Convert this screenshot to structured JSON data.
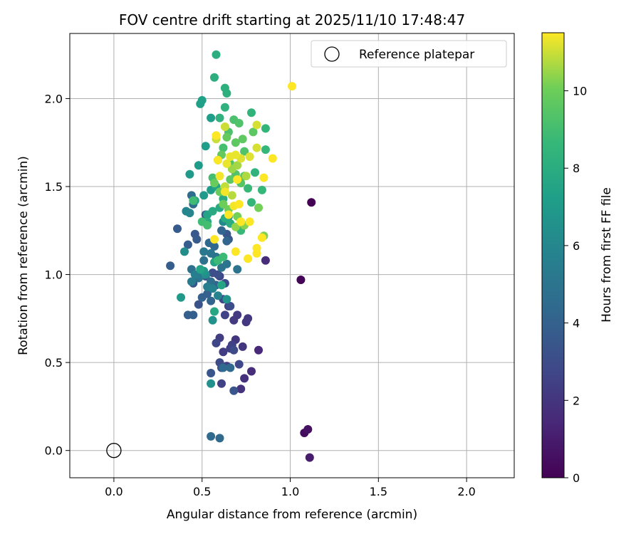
{
  "chart_data": {
    "type": "scatter",
    "title": "FOV centre drift starting at 2025/11/10 17:48:47",
    "xlabel": "Angular distance from reference (arcmin)",
    "ylabel": "Rotation from reference (arcmin)",
    "xlim": [
      -0.25,
      2.27
    ],
    "ylim": [
      -0.155,
      2.37
    ],
    "xticks": [
      0.0,
      0.5,
      1.0,
      1.5,
      2.0
    ],
    "xtick_labels": [
      "0.0",
      "0.5",
      "1.0",
      "1.5",
      "2.0"
    ],
    "yticks": [
      0.0,
      0.5,
      1.0,
      1.5,
      2.0
    ],
    "ytick_labels": [
      "0.0",
      "0.5",
      "1.0",
      "1.5",
      "2.0"
    ],
    "grid": true,
    "legend": {
      "position": "top-right",
      "label": "Reference platepar"
    },
    "reference_point": {
      "x": 0.0,
      "y": 0.0
    },
    "colorbar": {
      "label": "Hours from first FF file",
      "range": [
        0,
        11.5
      ],
      "ticks": [
        0,
        2,
        4,
        6,
        8,
        10
      ],
      "tick_labels": [
        "0",
        "2",
        "4",
        "6",
        "8",
        "10"
      ],
      "colormap": "viridis"
    },
    "points": [
      {
        "x": 1.12,
        "y": 1.41,
        "t": 0.0
      },
      {
        "x": 1.06,
        "y": 0.97,
        "t": 0.1
      },
      {
        "x": 1.08,
        "y": 0.1,
        "t": 0.4
      },
      {
        "x": 1.1,
        "y": 0.12,
        "t": 0.6
      },
      {
        "x": 1.11,
        "y": -0.04,
        "t": 1.0
      },
      {
        "x": 0.82,
        "y": 0.57,
        "t": 1.5
      },
      {
        "x": 0.86,
        "y": 1.08,
        "t": 1.6
      },
      {
        "x": 0.78,
        "y": 0.45,
        "t": 1.7
      },
      {
        "x": 0.74,
        "y": 0.41,
        "t": 1.8
      },
      {
        "x": 0.72,
        "y": 0.35,
        "t": 1.9
      },
      {
        "x": 0.69,
        "y": 0.63,
        "t": 2.0
      },
      {
        "x": 0.73,
        "y": 0.59,
        "t": 2.0
      },
      {
        "x": 0.75,
        "y": 0.73,
        "t": 2.1
      },
      {
        "x": 0.76,
        "y": 0.75,
        "t": 2.1
      },
      {
        "x": 0.68,
        "y": 0.74,
        "t": 2.2
      },
      {
        "x": 0.7,
        "y": 0.77,
        "t": 2.2
      },
      {
        "x": 0.6,
        "y": 0.64,
        "t": 2.3
      },
      {
        "x": 0.62,
        "y": 0.56,
        "t": 2.3
      },
      {
        "x": 0.66,
        "y": 0.58,
        "t": 2.4
      },
      {
        "x": 0.64,
        "y": 0.48,
        "t": 2.4
      },
      {
        "x": 0.61,
        "y": 0.38,
        "t": 2.5
      },
      {
        "x": 0.67,
        "y": 0.6,
        "t": 2.5
      },
      {
        "x": 0.65,
        "y": 0.82,
        "t": 2.6
      },
      {
        "x": 0.63,
        "y": 0.77,
        "t": 2.6
      },
      {
        "x": 0.58,
        "y": 0.61,
        "t": 2.7
      },
      {
        "x": 0.6,
        "y": 0.99,
        "t": 2.7
      },
      {
        "x": 0.62,
        "y": 0.86,
        "t": 2.8
      },
      {
        "x": 0.71,
        "y": 0.49,
        "t": 2.8
      },
      {
        "x": 0.68,
        "y": 0.57,
        "t": 2.9
      },
      {
        "x": 0.6,
        "y": 0.5,
        "t": 2.9
      },
      {
        "x": 0.63,
        "y": 0.95,
        "t": 3.0
      },
      {
        "x": 0.66,
        "y": 0.82,
        "t": 3.0
      },
      {
        "x": 0.56,
        "y": 1.01,
        "t": 3.1
      },
      {
        "x": 0.59,
        "y": 1.0,
        "t": 3.1
      },
      {
        "x": 0.61,
        "y": 0.47,
        "t": 3.2
      },
      {
        "x": 0.52,
        "y": 0.99,
        "t": 3.2
      },
      {
        "x": 0.48,
        "y": 0.83,
        "t": 3.3
      },
      {
        "x": 0.45,
        "y": 0.95,
        "t": 3.3
      },
      {
        "x": 0.55,
        "y": 0.44,
        "t": 3.4
      },
      {
        "x": 0.68,
        "y": 0.34,
        "t": 3.4
      },
      {
        "x": 0.65,
        "y": 1.2,
        "t": 3.5
      },
      {
        "x": 0.64,
        "y": 1.23,
        "t": 3.5
      },
      {
        "x": 0.46,
        "y": 1.23,
        "t": 3.6
      },
      {
        "x": 0.52,
        "y": 1.34,
        "t": 3.6
      },
      {
        "x": 0.47,
        "y": 1.2,
        "t": 3.7
      },
      {
        "x": 0.36,
        "y": 1.26,
        "t": 3.7
      },
      {
        "x": 0.42,
        "y": 1.17,
        "t": 3.8
      },
      {
        "x": 0.32,
        "y": 1.05,
        "t": 3.8
      },
      {
        "x": 0.45,
        "y": 0.77,
        "t": 3.9
      },
      {
        "x": 0.42,
        "y": 0.77,
        "t": 3.9
      },
      {
        "x": 0.5,
        "y": 0.87,
        "t": 4.0
      },
      {
        "x": 0.53,
        "y": 0.89,
        "t": 4.0
      },
      {
        "x": 0.55,
        "y": 0.85,
        "t": 4.1
      },
      {
        "x": 0.58,
        "y": 0.94,
        "t": 4.1
      },
      {
        "x": 0.61,
        "y": 1.25,
        "t": 4.2
      },
      {
        "x": 0.64,
        "y": 1.19,
        "t": 4.2
      },
      {
        "x": 0.57,
        "y": 1.16,
        "t": 4.3
      },
      {
        "x": 0.54,
        "y": 1.18,
        "t": 4.3
      },
      {
        "x": 0.66,
        "y": 0.47,
        "t": 4.4
      },
      {
        "x": 0.62,
        "y": 0.47,
        "t": 4.4
      },
      {
        "x": 0.6,
        "y": 0.07,
        "t": 4.5
      },
      {
        "x": 0.55,
        "y": 0.08,
        "t": 4.5
      },
      {
        "x": 0.45,
        "y": 1.4,
        "t": 4.6
      },
      {
        "x": 0.44,
        "y": 1.45,
        "t": 4.6
      },
      {
        "x": 0.55,
        "y": 0.96,
        "t": 4.7
      },
      {
        "x": 0.48,
        "y": 0.98,
        "t": 4.7
      },
      {
        "x": 0.44,
        "y": 1.03,
        "t": 4.8
      },
      {
        "x": 0.51,
        "y": 1.08,
        "t": 4.8
      },
      {
        "x": 0.58,
        "y": 1.1,
        "t": 4.9
      },
      {
        "x": 0.61,
        "y": 1.04,
        "t": 4.9
      },
      {
        "x": 0.7,
        "y": 1.03,
        "t": 5.0
      },
      {
        "x": 0.64,
        "y": 1.06,
        "t": 5.0
      },
      {
        "x": 0.55,
        "y": 1.12,
        "t": 5.1
      },
      {
        "x": 0.51,
        "y": 1.13,
        "t": 5.2
      },
      {
        "x": 0.49,
        "y": 0.99,
        "t": 5.3
      },
      {
        "x": 0.44,
        "y": 0.96,
        "t": 5.4
      },
      {
        "x": 0.46,
        "y": 1.0,
        "t": 5.5
      },
      {
        "x": 0.53,
        "y": 0.93,
        "t": 5.6
      },
      {
        "x": 0.56,
        "y": 0.92,
        "t": 5.7
      },
      {
        "x": 0.59,
        "y": 0.88,
        "t": 5.8
      },
      {
        "x": 0.41,
        "y": 1.36,
        "t": 5.9
      },
      {
        "x": 0.43,
        "y": 1.35,
        "t": 6.0
      },
      {
        "x": 0.62,
        "y": 1.3,
        "t": 6.1
      },
      {
        "x": 0.65,
        "y": 1.33,
        "t": 6.2
      },
      {
        "x": 0.4,
        "y": 1.13,
        "t": 6.3
      },
      {
        "x": 0.52,
        "y": 1.0,
        "t": 6.4
      },
      {
        "x": 0.55,
        "y": 0.38,
        "t": 6.5
      },
      {
        "x": 0.56,
        "y": 0.74,
        "t": 6.6
      },
      {
        "x": 0.64,
        "y": 0.86,
        "t": 6.7
      },
      {
        "x": 0.51,
        "y": 1.02,
        "t": 6.8
      },
      {
        "x": 0.38,
        "y": 0.87,
        "t": 6.9
      },
      {
        "x": 0.43,
        "y": 1.57,
        "t": 7.0
      },
      {
        "x": 0.51,
        "y": 1.45,
        "t": 7.0
      },
      {
        "x": 0.55,
        "y": 1.48,
        "t": 7.1
      },
      {
        "x": 0.48,
        "y": 1.62,
        "t": 7.1
      },
      {
        "x": 0.52,
        "y": 1.73,
        "t": 7.2
      },
      {
        "x": 0.55,
        "y": 1.89,
        "t": 7.2
      },
      {
        "x": 0.5,
        "y": 1.99,
        "t": 7.3
      },
      {
        "x": 0.49,
        "y": 1.97,
        "t": 7.3
      },
      {
        "x": 0.58,
        "y": 1.5,
        "t": 7.4
      },
      {
        "x": 0.46,
        "y": 1.42,
        "t": 7.4
      },
      {
        "x": 0.53,
        "y": 1.34,
        "t": 7.5
      },
      {
        "x": 0.49,
        "y": 1.03,
        "t": 7.5
      },
      {
        "x": 0.57,
        "y": 1.07,
        "t": 7.6
      },
      {
        "x": 0.61,
        "y": 0.94,
        "t": 7.6
      },
      {
        "x": 0.57,
        "y": 0.79,
        "t": 7.7
      },
      {
        "x": 0.53,
        "y": 1.3,
        "t": 7.8
      },
      {
        "x": 0.56,
        "y": 1.36,
        "t": 7.8
      },
      {
        "x": 0.6,
        "y": 1.38,
        "t": 7.9
      },
      {
        "x": 0.62,
        "y": 1.43,
        "t": 7.9
      },
      {
        "x": 0.63,
        "y": 1.32,
        "t": 8.0
      },
      {
        "x": 0.66,
        "y": 1.29,
        "t": 8.0
      },
      {
        "x": 0.58,
        "y": 2.25,
        "t": 8.1
      },
      {
        "x": 0.57,
        "y": 2.12,
        "t": 8.1
      },
      {
        "x": 0.63,
        "y": 2.06,
        "t": 8.2
      },
      {
        "x": 0.64,
        "y": 2.03,
        "t": 8.2
      },
      {
        "x": 0.6,
        "y": 1.89,
        "t": 8.3
      },
      {
        "x": 0.63,
        "y": 1.95,
        "t": 8.3
      },
      {
        "x": 0.78,
        "y": 1.92,
        "t": 8.4
      },
      {
        "x": 0.8,
        "y": 1.58,
        "t": 8.4
      },
      {
        "x": 0.78,
        "y": 1.41,
        "t": 8.5
      },
      {
        "x": 0.86,
        "y": 1.83,
        "t": 8.5
      },
      {
        "x": 0.86,
        "y": 1.71,
        "t": 8.6
      },
      {
        "x": 0.84,
        "y": 1.48,
        "t": 8.6
      },
      {
        "x": 0.76,
        "y": 1.49,
        "t": 8.7
      },
      {
        "x": 0.72,
        "y": 1.25,
        "t": 8.7
      },
      {
        "x": 0.62,
        "y": 1.1,
        "t": 8.8
      },
      {
        "x": 0.59,
        "y": 1.08,
        "t": 8.8
      },
      {
        "x": 0.45,
        "y": 1.42,
        "t": 8.9
      },
      {
        "x": 0.5,
        "y": 1.3,
        "t": 8.9
      },
      {
        "x": 0.53,
        "y": 1.28,
        "t": 9.0
      },
      {
        "x": 0.56,
        "y": 1.55,
        "t": 9.0
      },
      {
        "x": 0.59,
        "y": 1.65,
        "t": 9.1
      },
      {
        "x": 0.62,
        "y": 1.72,
        "t": 9.1
      },
      {
        "x": 0.65,
        "y": 1.81,
        "t": 9.2
      },
      {
        "x": 0.68,
        "y": 1.88,
        "t": 9.2
      },
      {
        "x": 0.71,
        "y": 1.86,
        "t": 9.3
      },
      {
        "x": 0.74,
        "y": 1.7,
        "t": 9.3
      },
      {
        "x": 0.66,
        "y": 1.63,
        "t": 9.4
      },
      {
        "x": 0.69,
        "y": 1.57,
        "t": 9.4
      },
      {
        "x": 0.74,
        "y": 1.56,
        "t": 9.5
      },
      {
        "x": 0.72,
        "y": 1.52,
        "t": 9.5
      },
      {
        "x": 0.66,
        "y": 1.54,
        "t": 9.6
      },
      {
        "x": 0.79,
        "y": 1.81,
        "t": 9.6
      },
      {
        "x": 0.73,
        "y": 1.77,
        "t": 9.7
      },
      {
        "x": 0.69,
        "y": 1.75,
        "t": 9.7
      },
      {
        "x": 0.64,
        "y": 1.78,
        "t": 9.8
      },
      {
        "x": 0.61,
        "y": 1.68,
        "t": 9.8
      },
      {
        "x": 0.57,
        "y": 1.52,
        "t": 9.9
      },
      {
        "x": 0.6,
        "y": 1.47,
        "t": 9.9
      },
      {
        "x": 0.62,
        "y": 1.4,
        "t": 10.0
      },
      {
        "x": 0.65,
        "y": 1.37,
        "t": 10.0
      },
      {
        "x": 0.7,
        "y": 1.33,
        "t": 10.1
      },
      {
        "x": 0.82,
        "y": 1.38,
        "t": 10.1
      },
      {
        "x": 0.85,
        "y": 1.22,
        "t": 10.2
      },
      {
        "x": 0.74,
        "y": 1.28,
        "t": 10.3
      },
      {
        "x": 0.69,
        "y": 1.27,
        "t": 10.4
      },
      {
        "x": 0.67,
        "y": 1.6,
        "t": 10.5
      },
      {
        "x": 0.7,
        "y": 1.62,
        "t": 10.6
      },
      {
        "x": 0.75,
        "y": 1.56,
        "t": 10.7
      },
      {
        "x": 0.67,
        "y": 1.45,
        "t": 10.8
      },
      {
        "x": 0.63,
        "y": 1.5,
        "t": 10.9
      },
      {
        "x": 0.58,
        "y": 1.77,
        "t": 11.0
      },
      {
        "x": 0.63,
        "y": 1.84,
        "t": 11.0
      },
      {
        "x": 0.81,
        "y": 1.85,
        "t": 11.1
      },
      {
        "x": 0.81,
        "y": 1.72,
        "t": 11.1
      },
      {
        "x": 0.77,
        "y": 1.67,
        "t": 11.2
      },
      {
        "x": 0.72,
        "y": 1.66,
        "t": 11.2
      },
      {
        "x": 0.69,
        "y": 1.68,
        "t": 11.3
      },
      {
        "x": 0.66,
        "y": 1.67,
        "t": 11.3
      },
      {
        "x": 0.64,
        "y": 1.63,
        "t": 11.3
      },
      {
        "x": 0.6,
        "y": 1.56,
        "t": 11.4
      },
      {
        "x": 0.63,
        "y": 1.47,
        "t": 11.4
      },
      {
        "x": 0.68,
        "y": 1.39,
        "t": 11.4
      },
      {
        "x": 0.71,
        "y": 1.4,
        "t": 11.5
      },
      {
        "x": 0.77,
        "y": 1.3,
        "t": 11.5
      },
      {
        "x": 0.81,
        "y": 1.15,
        "t": 11.5
      },
      {
        "x": 0.81,
        "y": 1.12,
        "t": 11.5
      },
      {
        "x": 0.76,
        "y": 1.09,
        "t": 11.5
      },
      {
        "x": 0.84,
        "y": 1.21,
        "t": 11.5
      },
      {
        "x": 0.85,
        "y": 1.55,
        "t": 11.5
      },
      {
        "x": 0.9,
        "y": 1.66,
        "t": 11.5
      },
      {
        "x": 1.01,
        "y": 2.07,
        "t": 11.5
      },
      {
        "x": 0.69,
        "y": 1.13,
        "t": 11.5
      },
      {
        "x": 0.57,
        "y": 1.2,
        "t": 11.5
      },
      {
        "x": 0.58,
        "y": 1.79,
        "t": 11.5
      },
      {
        "x": 0.72,
        "y": 1.3,
        "t": 11.5
      },
      {
        "x": 0.65,
        "y": 1.34,
        "t": 11.5
      },
      {
        "x": 0.7,
        "y": 1.54,
        "t": 11.5
      },
      {
        "x": 0.59,
        "y": 1.65,
        "t": 11.5
      }
    ]
  }
}
